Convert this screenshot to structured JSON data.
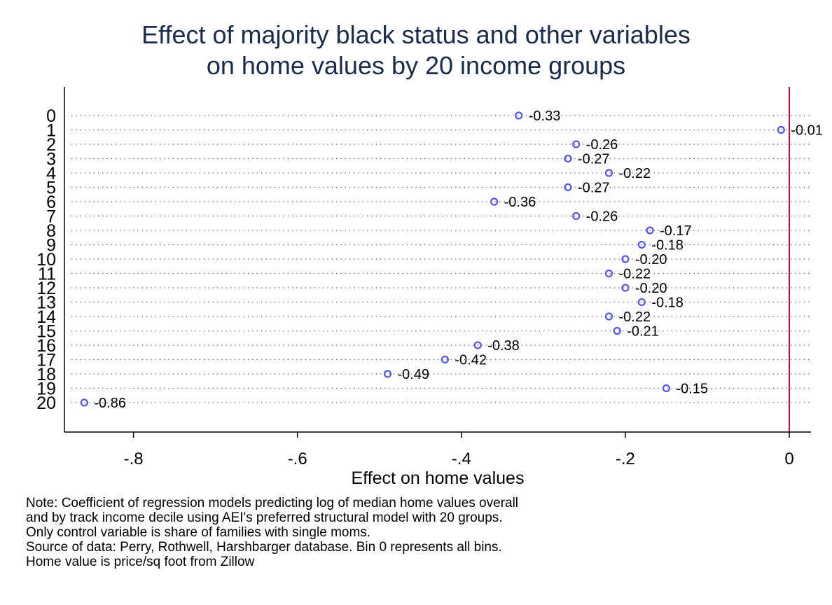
{
  "title_lines": [
    "Effect of majority black status and other variables",
    "on home values by 20 income groups"
  ],
  "note_lines": [
    "Note: Coefficient of regression models predicting log of median home values overall",
    "and by track income decile using AEI's preferred structural model with 20 groups.",
    "Only control variable is share of families with single moms.",
    "Source of data: Perry, Rothwell, Harshbarger database. Bin 0 represents all bins.",
    "Home value is price/sq foot from Zillow"
  ],
  "colors": {
    "title": "#1a2b4c",
    "marker": "#5a5ae6",
    "reference_line": "#c4103f",
    "grid_dots": "#555555",
    "axis": "#000000"
  },
  "chart_data": {
    "type": "scatter",
    "xlabel": "Effect on home values",
    "ylabel": "",
    "xlim": [
      -0.88,
      0.025
    ],
    "xticks": [
      -0.8,
      -0.6,
      -0.4,
      -0.2,
      0
    ],
    "xtick_labels": [
      "-.8",
      "-.6",
      "-.4",
      "-.2",
      "0"
    ],
    "reference_line_x": 0,
    "grid": "dotted horizontal lines per category",
    "categories": [
      "0",
      "1",
      "2",
      "3",
      "4",
      "5",
      "6",
      "7",
      "8",
      "9",
      "10",
      "11",
      "12",
      "13",
      "14",
      "15",
      "16",
      "17",
      "18",
      "19",
      "20"
    ],
    "values": [
      -0.33,
      -0.01,
      -0.26,
      -0.27,
      -0.22,
      -0.27,
      -0.36,
      -0.26,
      -0.17,
      -0.18,
      -0.2,
      -0.22,
      -0.2,
      -0.18,
      -0.22,
      -0.21,
      -0.38,
      -0.42,
      -0.49,
      -0.15,
      -0.86
    ],
    "data_labels": [
      "-0.33",
      "-0.01",
      "-0.26",
      "-0.27",
      "-0.22",
      "-0.27",
      "-0.36",
      "-0.26",
      "-0.17",
      "-0.18",
      "-0.20",
      "-0.22",
      "-0.20",
      "-0.18",
      "-0.22",
      "-0.21",
      "-0.38",
      "-0.42",
      "-0.49",
      "-0.15",
      "-0.86"
    ]
  }
}
